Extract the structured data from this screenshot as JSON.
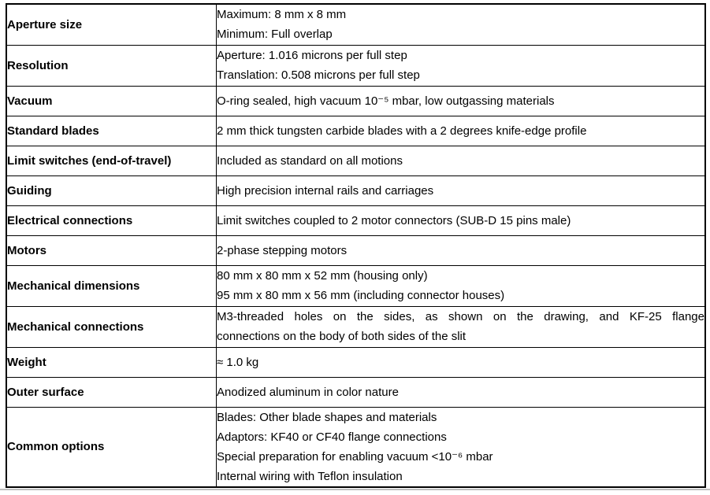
{
  "colors": {
    "table_border": "#000000",
    "text": "#000000",
    "bottom_rule": "#bfbfbf",
    "background": "#ffffff"
  },
  "table": {
    "rows": [
      {
        "label": "Aperture size",
        "lines": [
          "Maximum: 8 mm x 8 mm",
          "Minimum: Full overlap"
        ]
      },
      {
        "label": "Resolution",
        "lines": [
          "Aperture: 1.016 microns per full step",
          "Translation: 0.508 microns per full step"
        ]
      },
      {
        "label": "Vacuum",
        "lines": [
          "O-ring sealed, high vacuum 10⁻⁵ mbar, low outgassing materials"
        ]
      },
      {
        "label": "Standard blades",
        "lines": [
          "2 mm thick tungsten carbide blades with a 2 degrees knife-edge profile"
        ]
      },
      {
        "label": "Limit switches (end-of-travel)",
        "lines": [
          "Included as standard on all motions"
        ]
      },
      {
        "label": "Guiding",
        "lines": [
          "High precision internal rails and carriages"
        ]
      },
      {
        "label": "Electrical connections",
        "lines": [
          "Limit switches coupled to 2 motor connectors (SUB-D 15 pins male)"
        ]
      },
      {
        "label": "Motors",
        "lines": [
          "2-phase stepping motors"
        ]
      },
      {
        "label": "Mechanical dimensions",
        "lines": [
          "80 mm x 80 mm x 52 mm (housing only)",
          "95 mm x 80 mm x 56 mm (including connector houses)"
        ]
      },
      {
        "label": "Mechanical connections",
        "lines": [
          "M3-threaded holes on the sides, as shown on the drawing, and KF-25 flange",
          "connections on the body of both sides of the slit"
        ]
      },
      {
        "label": "Weight",
        "lines": [
          "≈ 1.0 kg"
        ]
      },
      {
        "label": "Outer surface",
        "lines": [
          "Anodized aluminum in color nature"
        ]
      },
      {
        "label": "Common options",
        "lines": [
          "Blades: Other blade shapes and materials",
          "Adaptors: KF40 or CF40 flange connections",
          "Special preparation for enabling vacuum <10⁻⁶ mbar",
          "Internal wiring with Teflon insulation"
        ]
      }
    ]
  }
}
